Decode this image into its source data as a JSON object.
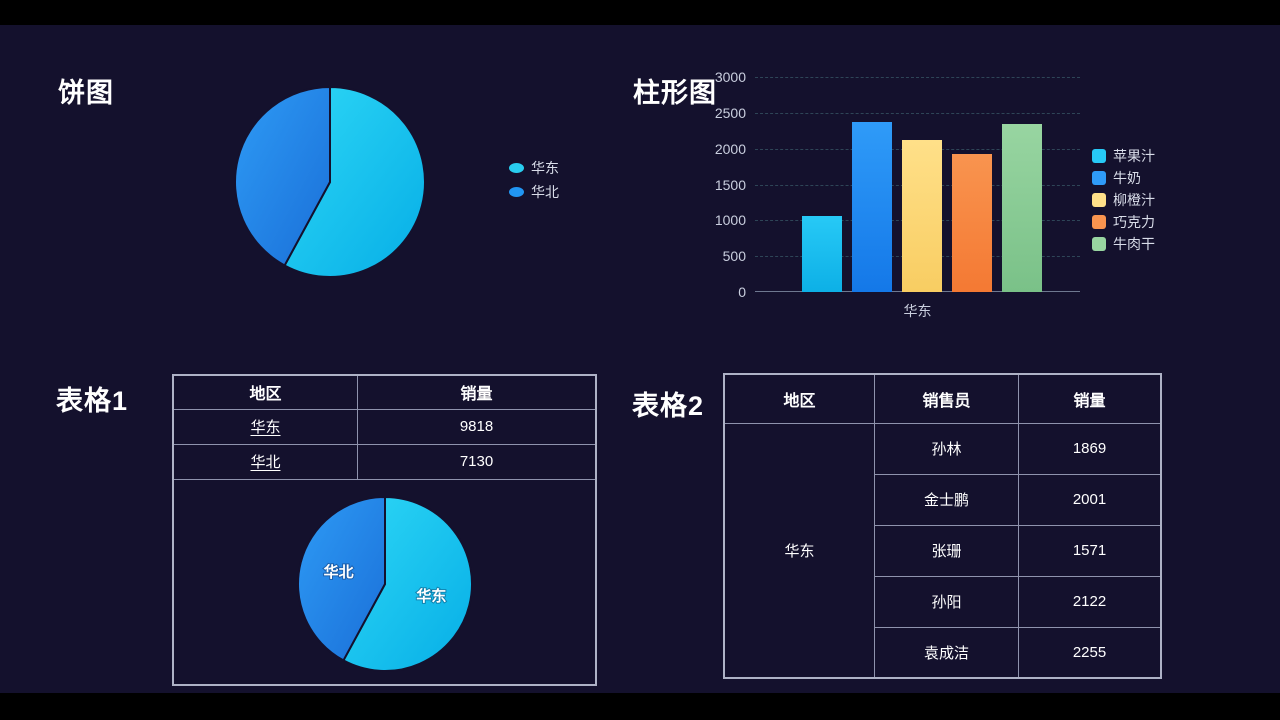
{
  "letterbox_color": "#000000",
  "background_color": "#14112d",
  "titles": {
    "pie": "饼图",
    "bar": "柱形图",
    "table1": "表格1",
    "table2": "表格2"
  },
  "chart_data": [
    {
      "id": "pie-main",
      "type": "pie",
      "title": "饼图",
      "categories": [
        "华东",
        "华北"
      ],
      "values": [
        9818,
        7130
      ],
      "percentages": [
        57.9,
        42.1
      ],
      "slice_gradients": [
        [
          "#2ed7f6",
          "#06aee6"
        ],
        [
          "#2e9bf5",
          "#1a6fd8"
        ]
      ],
      "labels_inside": false,
      "legend": {
        "position": "right",
        "items": [
          "华东",
          "华北"
        ],
        "marker_colors": [
          "#29cdef",
          "#2196f3"
        ]
      }
    },
    {
      "id": "bar-main",
      "type": "bar",
      "title": "柱形图",
      "categories": [
        "华东"
      ],
      "xlabel": "华东",
      "ylim": [
        0,
        3000
      ],
      "yticks": [
        0,
        500,
        1000,
        1500,
        2000,
        2500,
        3000
      ],
      "grid": "dashed",
      "legend_position": "right",
      "series": [
        {
          "name": "苹果汁",
          "value": 1060,
          "gradient": [
            "#27c9f6",
            "#0db0e6"
          ]
        },
        {
          "name": "牛奶",
          "value": 2370,
          "gradient": [
            "#2f9bf8",
            "#1478e8"
          ]
        },
        {
          "name": "柳橙汁",
          "value": 2120,
          "gradient": [
            "#ffe089",
            "#f8cd62"
          ]
        },
        {
          "name": "巧克力",
          "value": 1925,
          "gradient": [
            "#f9944f",
            "#f47933"
          ]
        },
        {
          "name": "牛肉干",
          "value": 2345,
          "gradient": [
            "#98d5a1",
            "#7ac188"
          ]
        }
      ]
    },
    {
      "id": "pie-table",
      "type": "pie",
      "categories": [
        "华东",
        "华北"
      ],
      "values": [
        9818,
        7130
      ],
      "slice_gradients": [
        [
          "#2ed7f6",
          "#06aee6"
        ],
        [
          "#2e9bf5",
          "#1a6fd8"
        ]
      ],
      "labels_inside": true
    }
  ],
  "table1": {
    "headers": [
      "地区",
      "销量"
    ],
    "rows": [
      {
        "region": "华东",
        "sales": "9818"
      },
      {
        "region": "华北",
        "sales": "7130"
      }
    ]
  },
  "table2": {
    "headers": [
      "地区",
      "销售员",
      "销量"
    ],
    "region": "华东",
    "rows": [
      {
        "name": "孙林",
        "sales": "1869"
      },
      {
        "name": "金士鹏",
        "sales": "2001"
      },
      {
        "name": "张珊",
        "sales": "1571"
      },
      {
        "name": "孙阳",
        "sales": "2122"
      },
      {
        "name": "袁成洁",
        "sales": "2255"
      }
    ]
  }
}
